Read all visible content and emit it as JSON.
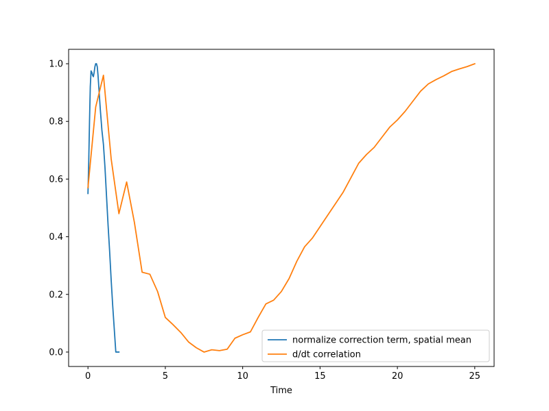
{
  "chart_data": {
    "type": "line",
    "title": "",
    "xlabel": "Time",
    "ylabel": "",
    "xlim": [
      -1.25,
      26.25
    ],
    "ylim": [
      -0.05,
      1.05
    ],
    "xticks": [
      0,
      5,
      10,
      15,
      20,
      25
    ],
    "yticks": [
      0.0,
      0.2,
      0.4,
      0.6,
      0.8,
      1.0
    ],
    "xtick_labels": [
      "0",
      "5",
      "10",
      "15",
      "20",
      "25"
    ],
    "ytick_labels": [
      "0.0",
      "0.2",
      "0.4",
      "0.6",
      "0.8",
      "1.0"
    ],
    "grid": false,
    "legend_position": "lower-right",
    "series": [
      {
        "name": "normalize correction term, spatial mean",
        "color": "#1f77b4",
        "x": [
          0,
          0.05,
          0.1,
          0.15,
          0.2,
          0.25,
          0.3,
          0.35,
          0.4,
          0.45,
          0.5,
          0.55,
          0.6,
          0.65,
          0.7,
          0.8,
          0.9,
          1.0,
          1.1,
          1.2,
          1.3,
          1.4,
          1.5,
          1.6,
          1.7,
          1.8,
          1.9,
          2.0
        ],
        "y": [
          0.55,
          0.66,
          0.8,
          0.92,
          0.975,
          0.97,
          0.96,
          0.955,
          0.97,
          0.99,
          1.0,
          1.0,
          0.99,
          0.96,
          0.92,
          0.84,
          0.77,
          0.72,
          0.64,
          0.54,
          0.44,
          0.35,
          0.25,
          0.16,
          0.08,
          0.0,
          0.0,
          0.0
        ]
      },
      {
        "name": "d/dt correlation",
        "color": "#ff7f0e",
        "x": [
          0,
          0.5,
          1.0,
          1.5,
          2.0,
          2.5,
          3.0,
          3.5,
          4.0,
          4.5,
          5.0,
          5.5,
          6.0,
          6.5,
          7.0,
          7.5,
          8.0,
          8.5,
          9.0,
          9.5,
          10.0,
          10.5,
          11.0,
          11.5,
          12.0,
          12.5,
          13.0,
          13.5,
          14.0,
          14.5,
          15.0,
          15.5,
          16.0,
          16.5,
          17.0,
          17.5,
          18.0,
          18.5,
          19.0,
          19.5,
          20.0,
          20.5,
          21.0,
          21.5,
          22.0,
          22.5,
          23.0,
          23.5,
          24.0,
          24.5,
          25.0
        ],
        "y": [
          0.57,
          0.85,
          0.96,
          0.67,
          0.48,
          0.59,
          0.45,
          0.277,
          0.27,
          0.21,
          0.12,
          0.095,
          0.068,
          0.035,
          0.015,
          0.0,
          0.008,
          0.005,
          0.01,
          0.048,
          0.06,
          0.07,
          0.12,
          0.167,
          0.18,
          0.21,
          0.255,
          0.315,
          0.365,
          0.395,
          0.435,
          0.475,
          0.515,
          0.555,
          0.605,
          0.655,
          0.685,
          0.71,
          0.745,
          0.78,
          0.805,
          0.835,
          0.87,
          0.905,
          0.93,
          0.945,
          0.958,
          0.973,
          0.982,
          0.99,
          1.0
        ]
      }
    ]
  }
}
